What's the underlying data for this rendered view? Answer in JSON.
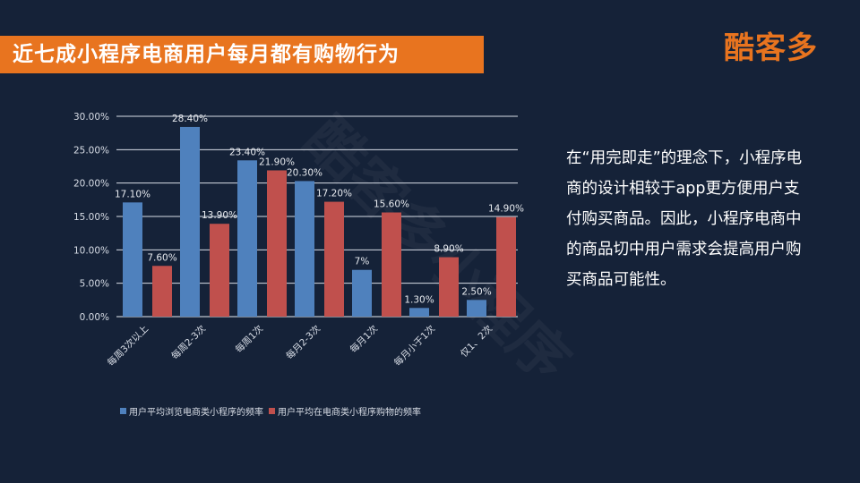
{
  "header": {
    "title": "近七成小程序电商用户每月都有购物行为",
    "logo_text": "酷客多",
    "title_bg": "#e8741f"
  },
  "watermark": {
    "text": "酷客多小程序"
  },
  "side_text": "在“用完即走”的理念下，小程序电商的设计相较于app更方便用户支付购买商品。因此，小程序电商中的商品切中用户需求会提高用户购买商品可能性。",
  "chart_data": {
    "type": "bar",
    "title": "",
    "xlabel": "",
    "ylabel": "",
    "categories": [
      "每周3次以上",
      "每周2-3次",
      "每周1次",
      "每月2-3次",
      "每月1次",
      "每月小于1次",
      "仅1、2次"
    ],
    "series": [
      {
        "name": "用户平均浏览电商类小程序的频率",
        "color": "#4f81bd",
        "values": [
          17.1,
          28.4,
          23.4,
          20.3,
          7,
          1.3,
          2.5
        ],
        "labels": [
          "17.10%",
          "28.40%",
          "23.40%",
          "20.30%",
          "7%",
          "1.30%",
          "2.50%"
        ]
      },
      {
        "name": "用户平均在电商类小程序购物的频率",
        "color": "#c0504d",
        "values": [
          7.6,
          13.9,
          21.9,
          17.2,
          15.6,
          8.9,
          14.9
        ],
        "labels": [
          "7.60%",
          "13.90%",
          "21.90%",
          "17.20%",
          "15.60%",
          "8.90%",
          "14.90%"
        ]
      }
    ],
    "ylim": [
      0,
      30
    ],
    "yticks": [
      0,
      5,
      10,
      15,
      20,
      25,
      30
    ],
    "ytick_labels": [
      "0.00%",
      "5.00%",
      "10.00%",
      "15.00%",
      "20.00%",
      "25.00%",
      "30.00%"
    ],
    "grid": true,
    "legend_position": "bottom"
  }
}
